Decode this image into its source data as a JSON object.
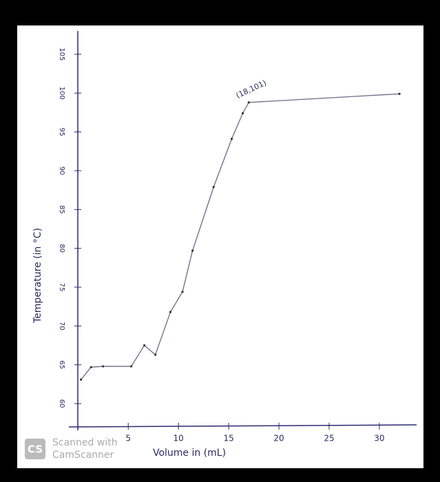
{
  "chart_data": {
    "type": "line",
    "x_label": "Volume in (mL)",
    "y_label": "Temperature (in °C)",
    "annotation": "(18,101)",
    "x": [
      0.3,
      1.3,
      2.5,
      5.3,
      6.6,
      7.7,
      9.2,
      10.4,
      11.4,
      13.5,
      15.3,
      16.4,
      17,
      32
    ],
    "values": [
      63.1,
      64.7,
      64.8,
      64.8,
      67.5,
      66.3,
      71.8,
      74.4,
      79.7,
      87.9,
      94.1,
      97.4,
      98.8,
      99.9
    ],
    "color": "#6a6a8a",
    "xlim": [
      -0.5,
      33.5
    ],
    "xticks": [
      5,
      10,
      15,
      20,
      25,
      30
    ],
    "ylim": [
      57,
      108
    ],
    "yticks": [
      60,
      65,
      70,
      75,
      80,
      85,
      90,
      95,
      100,
      105
    ]
  },
  "watermark": {
    "logo": "CS",
    "line1": "Scanned with",
    "line2": "CamScanner"
  }
}
